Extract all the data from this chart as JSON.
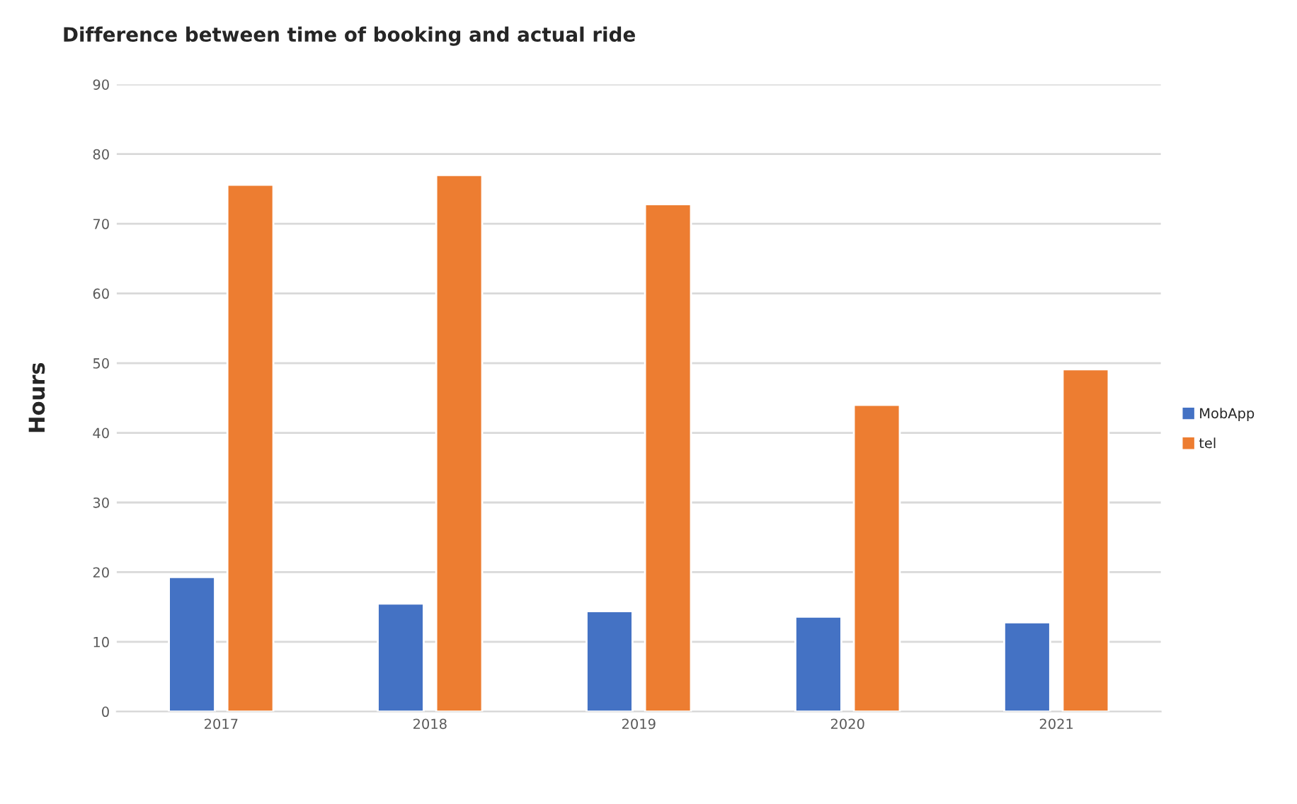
{
  "chart_data": {
    "type": "bar",
    "title": "Difference between time of booking and actual ride",
    "ylabel": "Hours",
    "categories": [
      "2017",
      "2018",
      "2019",
      "2020",
      "2021"
    ],
    "series": [
      {
        "name": "MobApp",
        "color": "#4472c4",
        "values": [
          19.3,
          15.5,
          14.4,
          13.6,
          12.8
        ]
      },
      {
        "name": "tel",
        "color": "#ed7d31",
        "values": [
          75.6,
          77.0,
          72.8,
          44.0,
          49.1
        ]
      }
    ],
    "ylim": [
      0,
      90
    ],
    "yticks": [
      0,
      10,
      20,
      30,
      40,
      50,
      60,
      70,
      80,
      90
    ],
    "grid": "y",
    "legend": "right"
  }
}
